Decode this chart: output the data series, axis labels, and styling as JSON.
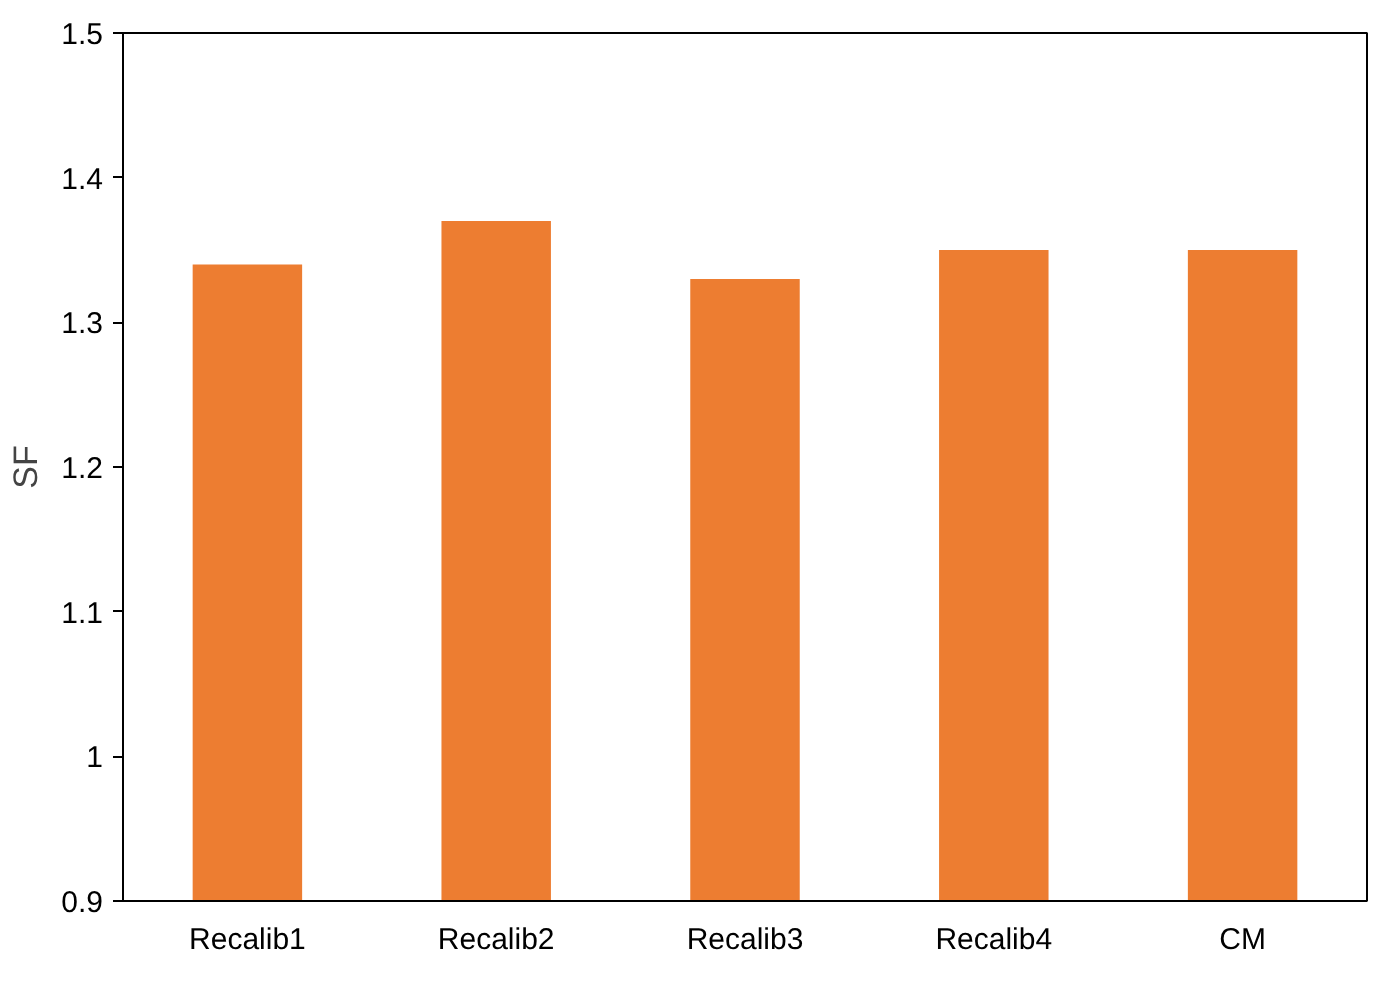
{
  "chart_data": {
    "type": "bar",
    "ylabel": "SF",
    "categories": [
      "Recalib1",
      "Recalib2",
      "Recalib3",
      "Recalib4",
      "CM"
    ],
    "values": [
      1.34,
      1.37,
      1.33,
      1.35,
      1.35
    ],
    "color": "#ed7d31",
    "ylim": [
      0.9,
      1.5
    ],
    "yticks": [
      0.9,
      1,
      1.1,
      1.2,
      1.3,
      1.4,
      1.5
    ],
    "grid": false
  }
}
